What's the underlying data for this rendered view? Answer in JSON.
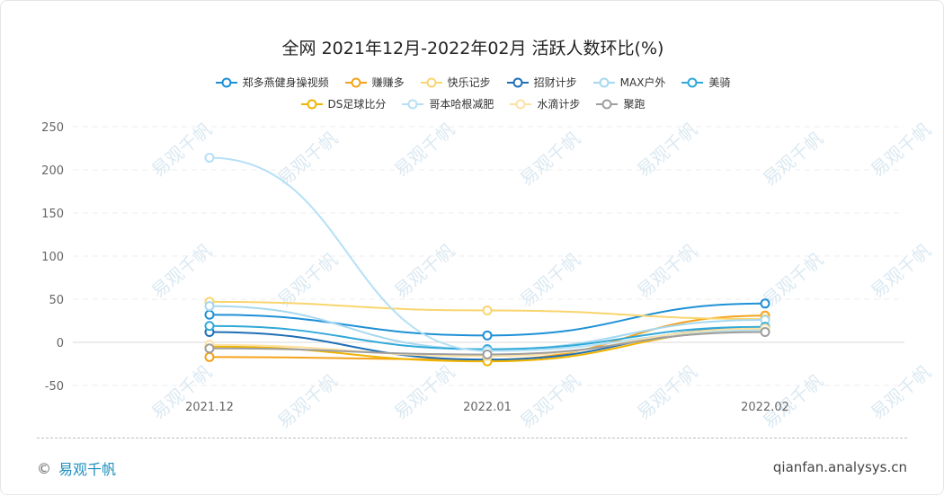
{
  "title": "全网 2021年12月-2022年02月 活跃人数环比(%)",
  "footer": {
    "copyright": "©",
    "brand": "易观千帆",
    "site": "qianfan.analysys.cn"
  },
  "watermark": "易观千帆",
  "chart_data": {
    "type": "line",
    "smooth": true,
    "categories": [
      "2021.12",
      "2022.01",
      "2022.02"
    ],
    "ylim": [
      -50,
      250
    ],
    "yticks": [
      250,
      200,
      150,
      100,
      50,
      0,
      -50
    ],
    "grid": true,
    "legend_position": "top",
    "series": [
      {
        "name": "郑多燕健身操视频",
        "color": "#1e90d6",
        "values": [
          32,
          8,
          45
        ]
      },
      {
        "name": "赚赚多",
        "color": "#f5a21b",
        "values": [
          -17,
          -20,
          31
        ]
      },
      {
        "name": "快乐记步",
        "color": "#f9d56e",
        "values": [
          47,
          37,
          27
        ]
      },
      {
        "name": "招财计步",
        "color": "#1f6fb5",
        "values": [
          12,
          -20,
          17
        ]
      },
      {
        "name": "MAX户外",
        "color": "#a6d8f0",
        "values": [
          42,
          -8,
          26
        ]
      },
      {
        "name": "美骑",
        "color": "#30a9d9",
        "values": [
          19,
          -8,
          18
        ]
      },
      {
        "name": "DS足球比分",
        "color": "#f0b400",
        "values": [
          -5,
          -22,
          14
        ]
      },
      {
        "name": "哥本哈根减肥",
        "color": "#b5e0f5",
        "values": [
          214,
          -10,
          14
        ]
      },
      {
        "name": "水滴计步",
        "color": "#fde1a4",
        "values": [
          -3,
          -16,
          16
        ]
      },
      {
        "name": "聚跑",
        "color": "#9e9e9e",
        "values": [
          -7,
          -14,
          12
        ]
      }
    ]
  }
}
